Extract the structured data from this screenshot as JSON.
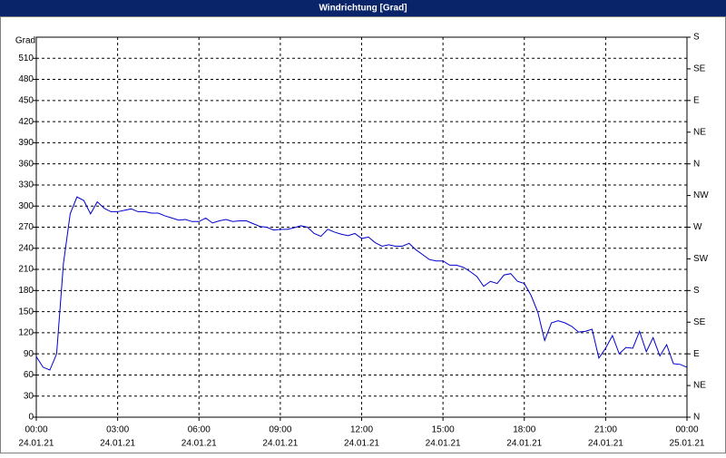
{
  "chart_data": {
    "type": "line",
    "title": "Windrichtung [Grad]",
    "y_label": "Grad",
    "x": [
      "2021-01-24T00:00",
      "2021-01-24T00:15",
      "2021-01-24T00:30",
      "2021-01-24T00:45",
      "2021-01-24T01:00",
      "2021-01-24T01:15",
      "2021-01-24T01:30",
      "2021-01-24T01:45",
      "2021-01-24T02:00",
      "2021-01-24T02:15",
      "2021-01-24T02:30",
      "2021-01-24T02:45",
      "2021-01-24T03:00",
      "2021-01-24T03:15",
      "2021-01-24T03:30",
      "2021-01-24T03:45",
      "2021-01-24T04:00",
      "2021-01-24T04:15",
      "2021-01-24T04:30",
      "2021-01-24T04:45",
      "2021-01-24T05:00",
      "2021-01-24T05:15",
      "2021-01-24T05:30",
      "2021-01-24T05:45",
      "2021-01-24T06:00",
      "2021-01-24T06:15",
      "2021-01-24T06:30",
      "2021-01-24T06:45",
      "2021-01-24T07:00",
      "2021-01-24T07:15",
      "2021-01-24T07:30",
      "2021-01-24T07:45",
      "2021-01-24T08:00",
      "2021-01-24T08:15",
      "2021-01-24T08:30",
      "2021-01-24T08:45",
      "2021-01-24T09:00",
      "2021-01-24T09:15",
      "2021-01-24T09:30",
      "2021-01-24T09:45",
      "2021-01-24T10:00",
      "2021-01-24T10:15",
      "2021-01-24T10:30",
      "2021-01-24T10:45",
      "2021-01-24T11:00",
      "2021-01-24T11:15",
      "2021-01-24T11:30",
      "2021-01-24T11:45",
      "2021-01-24T12:00",
      "2021-01-24T12:15",
      "2021-01-24T12:30",
      "2021-01-24T12:45",
      "2021-01-24T13:00",
      "2021-01-24T13:15",
      "2021-01-24T13:30",
      "2021-01-24T13:45",
      "2021-01-24T14:00",
      "2021-01-24T14:15",
      "2021-01-24T14:30",
      "2021-01-24T14:45",
      "2021-01-24T15:00",
      "2021-01-24T15:15",
      "2021-01-24T15:30",
      "2021-01-24T15:45",
      "2021-01-24T16:00",
      "2021-01-24T16:15",
      "2021-01-24T16:30",
      "2021-01-24T16:45",
      "2021-01-24T17:00",
      "2021-01-24T17:15",
      "2021-01-24T17:30",
      "2021-01-24T17:45",
      "2021-01-24T18:00",
      "2021-01-24T18:15",
      "2021-01-24T18:30",
      "2021-01-24T18:45",
      "2021-01-24T19:00",
      "2021-01-24T19:15",
      "2021-01-24T19:30",
      "2021-01-24T19:45",
      "2021-01-24T20:00",
      "2021-01-24T20:15",
      "2021-01-24T20:30",
      "2021-01-24T20:45",
      "2021-01-24T21:00",
      "2021-01-24T21:15",
      "2021-01-24T21:30",
      "2021-01-24T21:45",
      "2021-01-24T22:00",
      "2021-01-24T22:15",
      "2021-01-24T22:30",
      "2021-01-24T22:45",
      "2021-01-24T23:00",
      "2021-01-24T23:15",
      "2021-01-24T23:30",
      "2021-01-24T23:45",
      "2021-01-25T00:00"
    ],
    "series": [
      {
        "color": "#0000cc",
        "values": [
          86,
          71,
          67,
          90,
          218,
          289,
          313,
          308,
          289,
          306,
          297,
          292,
          292,
          294,
          296,
          292,
          292,
          290,
          290,
          286,
          283,
          280,
          281,
          278,
          278,
          283,
          276,
          279,
          281,
          278,
          279,
          279,
          275,
          271,
          270,
          266,
          267,
          267,
          269,
          272,
          270,
          261,
          257,
          267,
          263,
          260,
          258,
          261,
          254,
          256,
          248,
          243,
          245,
          243,
          243,
          247,
          238,
          231,
          224,
          222,
          222,
          216,
          216,
          213,
          207,
          200,
          186,
          193,
          190,
          202,
          204,
          193,
          190,
          173,
          149,
          109,
          134,
          137,
          134,
          129,
          121,
          122,
          125,
          84,
          98,
          116,
          90,
          99,
          98,
          122,
          93,
          113,
          87,
          103,
          76,
          75,
          71
        ]
      }
    ],
    "xlim": [
      "2021-01-24T00:00",
      "2021-01-25T00:00"
    ],
    "xticks": [
      {
        "value": "2021-01-24T00:00",
        "label": "00:00",
        "date": "24.01.21"
      },
      {
        "value": "2021-01-24T03:00",
        "label": "03:00",
        "date": "24.01.21"
      },
      {
        "value": "2021-01-24T06:00",
        "label": "06:00",
        "date": "24.01.21"
      },
      {
        "value": "2021-01-24T09:00",
        "label": "09:00",
        "date": "24.01.21"
      },
      {
        "value": "2021-01-24T12:00",
        "label": "12:00",
        "date": "24.01.21"
      },
      {
        "value": "2021-01-24T15:00",
        "label": "15:00",
        "date": "24.01.21"
      },
      {
        "value": "2021-01-24T18:00",
        "label": "18:00",
        "date": "24.01.21"
      },
      {
        "value": "2021-01-24T21:00",
        "label": "21:00",
        "date": "24.01.21"
      },
      {
        "value": "2021-01-25T00:00",
        "label": "00:00",
        "date": "25.01.21"
      }
    ],
    "ylim": [
      0,
      540
    ],
    "yticks": [
      0,
      30,
      60,
      90,
      120,
      150,
      180,
      210,
      240,
      270,
      300,
      330,
      360,
      390,
      420,
      450,
      480,
      510
    ],
    "y2lim": [
      0,
      540
    ],
    "y2ticks": [
      {
        "value": 0,
        "label": "N"
      },
      {
        "value": 45,
        "label": "NE"
      },
      {
        "value": 90,
        "label": "E"
      },
      {
        "value": 135,
        "label": "SE"
      },
      {
        "value": 180,
        "label": "S"
      },
      {
        "value": 225,
        "label": "SW"
      },
      {
        "value": 270,
        "label": "W"
      },
      {
        "value": 315,
        "label": "NW"
      },
      {
        "value": 360,
        "label": "N"
      },
      {
        "value": 405,
        "label": "NE"
      },
      {
        "value": 450,
        "label": "E"
      },
      {
        "value": 495,
        "label": "SE"
      },
      {
        "value": 540,
        "label": "S"
      }
    ],
    "grid": true
  }
}
